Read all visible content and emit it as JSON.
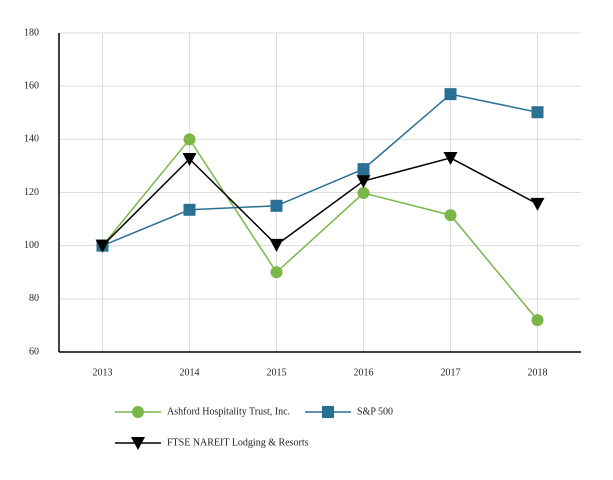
{
  "chart_data": {
    "type": "line",
    "categories": [
      "2013",
      "2014",
      "2015",
      "2016",
      "2017",
      "2018"
    ],
    "series": [
      {
        "name": "Ashford Hospitality Trust, Inc.",
        "color": "#7ab648",
        "marker": "circle",
        "values": [
          100,
          140,
          90,
          119.8,
          111.5,
          72
        ]
      },
      {
        "name": "S&P 500",
        "color": "#2a7095",
        "marker": "square",
        "values": [
          100,
          113.5,
          115,
          128.8,
          157,
          150.2
        ]
      },
      {
        "name": "FTSE NAREIT Lodging & Resorts",
        "color": "#000000",
        "marker": "triangle-down",
        "values": [
          100,
          132.6,
          100.3,
          124.3,
          133,
          115.7
        ]
      }
    ],
    "ylim": [
      60,
      180
    ],
    "yticks": [
      60,
      80,
      100,
      120,
      140,
      160,
      180
    ],
    "grid": true,
    "legend": "bottom"
  }
}
